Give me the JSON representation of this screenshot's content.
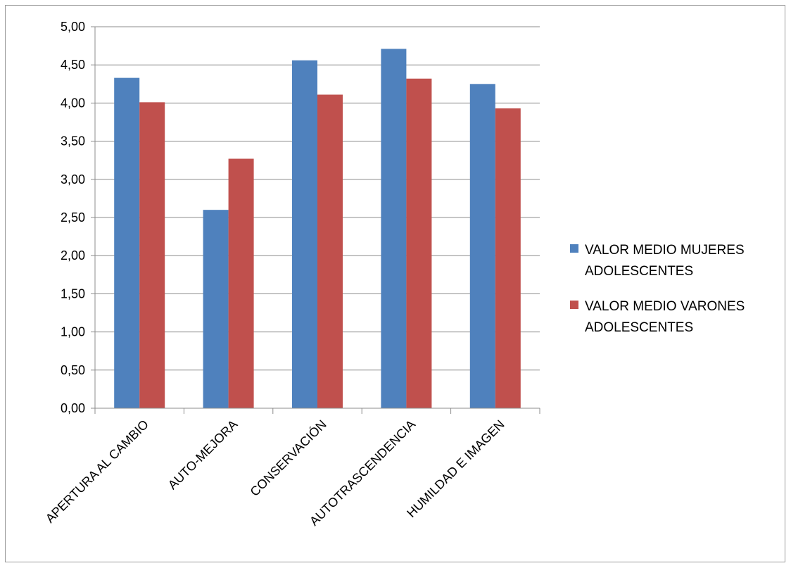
{
  "chart_data": {
    "type": "bar",
    "categories": [
      "APERTURA AL CAMBIO",
      "AUTO-MEJORA",
      "CONSERVACIÓN",
      "AUTOTRASCENDENCIA",
      "HUMILDAD E IMAGEN"
    ],
    "series": [
      {
        "name": "VALOR MEDIO MUJERES ADOLESCENTES",
        "values": [
          4.33,
          2.6,
          4.56,
          4.71,
          4.25
        ],
        "color": "#4F81BD"
      },
      {
        "name": "VALOR MEDIO VARONES ADOLESCENTES",
        "values": [
          4.01,
          3.27,
          4.11,
          4.32,
          3.93
        ],
        "color": "#C0504D"
      }
    ],
    "ylim": [
      0,
      5
    ],
    "yticks": [
      "0,00",
      "0,50",
      "1,00",
      "1,50",
      "2,00",
      "2,50",
      "3,00",
      "3,50",
      "4,00",
      "4,50",
      "5,00"
    ],
    "ytick_values": [
      0,
      0.5,
      1,
      1.5,
      2,
      2.5,
      3,
      3.5,
      4,
      4.5,
      5
    ],
    "grid": true,
    "legend_position": "right",
    "legend_lines": [
      [
        "VALOR MEDIO MUJERES",
        "ADOLESCENTES"
      ],
      [
        "VALOR MEDIO VARONES",
        "ADOLESCENTES"
      ]
    ],
    "title": "",
    "xlabel": "",
    "ylabel": ""
  }
}
